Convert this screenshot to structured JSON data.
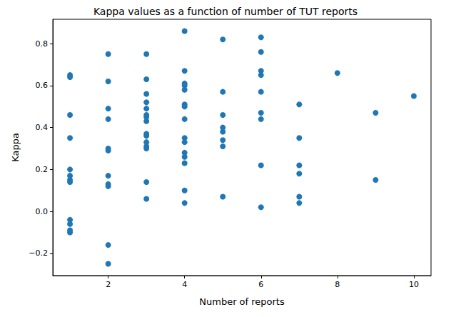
{
  "chart_data": {
    "type": "scatter",
    "title": "Kappa values as a function of number of TUT reports",
    "x_label": "Number of reports",
    "y_label": "Kappa",
    "x": [
      1,
      1,
      1,
      1,
      1,
      1,
      1,
      1,
      1,
      1,
      1,
      1,
      2,
      2,
      2,
      2,
      2,
      2,
      2,
      2,
      2,
      2,
      2,
      3,
      3,
      3,
      3,
      3,
      3,
      3,
      3,
      3,
      3,
      3,
      3,
      3,
      3,
      3,
      4,
      4,
      4,
      4,
      4,
      4,
      4,
      4,
      4,
      4,
      4,
      4,
      4,
      4,
      4,
      5,
      5,
      5,
      5,
      5,
      5,
      5,
      5,
      6,
      6,
      6,
      6,
      6,
      6,
      6,
      6,
      6,
      7,
      7,
      7,
      7,
      7,
      7,
      8,
      9,
      9,
      10
    ],
    "values": [
      0.65,
      0.64,
      0.46,
      0.35,
      0.2,
      0.17,
      0.15,
      0.14,
      -0.04,
      -0.06,
      -0.09,
      -0.1,
      0.75,
      0.62,
      0.49,
      0.44,
      0.3,
      0.29,
      0.17,
      0.13,
      0.12,
      -0.16,
      -0.25,
      0.75,
      0.63,
      0.56,
      0.52,
      0.49,
      0.46,
      0.45,
      0.43,
      0.37,
      0.36,
      0.33,
      0.31,
      0.3,
      0.14,
      0.06,
      0.86,
      0.67,
      0.61,
      0.6,
      0.58,
      0.51,
      0.5,
      0.44,
      0.35,
      0.33,
      0.28,
      0.26,
      0.23,
      0.1,
      0.04,
      0.82,
      0.57,
      0.46,
      0.4,
      0.38,
      0.34,
      0.31,
      0.07,
      0.83,
      0.76,
      0.67,
      0.65,
      0.57,
      0.47,
      0.44,
      0.22,
      0.02,
      0.51,
      0.35,
      0.22,
      0.18,
      0.07,
      0.04,
      0.66,
      0.47,
      0.15,
      0.55
    ],
    "color": "#1f77b4",
    "marker": "circle",
    "xlim": [
      0.55,
      10.45
    ],
    "ylim": [
      -0.306,
      0.916
    ],
    "xticks": [
      2,
      4,
      6,
      8,
      10
    ],
    "yticks": [
      {
        "value": -0.2,
        "label": "−0.2"
      },
      {
        "value": 0,
        "label": "0.0"
      },
      {
        "value": 0.2,
        "label": "0.2"
      },
      {
        "value": 0.4,
        "label": "0.4"
      },
      {
        "value": 0.6,
        "label": "0.6"
      },
      {
        "value": 0.8,
        "label": "0.8"
      }
    ],
    "grid": false
  }
}
